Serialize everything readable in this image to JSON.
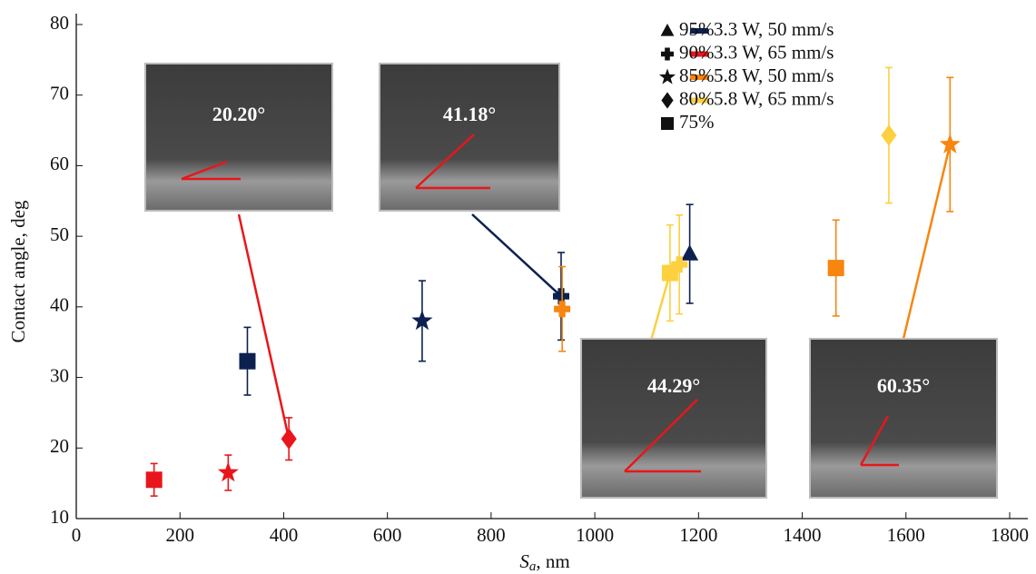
{
  "chart_data": {
    "type": "scatter",
    "xlabel": [
      "S",
      "a",
      ", nm"
    ],
    "ylabel": "Contact angle, deg",
    "xlim": [
      0,
      1800
    ],
    "xticks": [
      0,
      200,
      400,
      600,
      800,
      1000,
      1200,
      1400,
      1600,
      1800
    ],
    "ylim": [
      10,
      80
    ],
    "yticks": [
      10,
      20,
      30,
      40,
      50,
      60,
      70,
      80
    ],
    "marker_legend": [
      {
        "label": "95%",
        "marker": "triangle"
      },
      {
        "label": "90%",
        "marker": "plus"
      },
      {
        "label": "85%",
        "marker": "star"
      },
      {
        "label": "80%",
        "marker": "diamond"
      },
      {
        "label": "75%",
        "marker": "square"
      }
    ],
    "series": [
      {
        "name": "3.3 W, 50 mm/s",
        "color": "#0c2150",
        "x": [
          330,
          667,
          935,
          1183
        ],
        "values": [
          32.3,
          38,
          41.5,
          47.5
        ],
        "errors": [
          4.8,
          5.7,
          6.2,
          7
        ],
        "markers": [
          "square",
          "star",
          "plus",
          "triangle"
        ]
      },
      {
        "name": "3.3 W, 65 mm/s",
        "color": "#e8161b",
        "x": [
          150,
          293,
          410
        ],
        "values": [
          15.5,
          16.5,
          21.3
        ],
        "errors": [
          2.3,
          2.5,
          3
        ],
        "markers": [
          "square",
          "star",
          "diamond"
        ]
      },
      {
        "name": "5.8 W, 50 mm/s",
        "color": "#f7850f",
        "x": [
          937,
          1465,
          1685
        ],
        "values": [
          39.7,
          45.5,
          63
        ],
        "errors": [
          6,
          6.8,
          9.5
        ],
        "markers": [
          "plus",
          "square",
          "star"
        ]
      },
      {
        "name": "5.8 W, 65 mm/s",
        "color": "#fcd03f",
        "x": [
          1145,
          1163,
          1567
        ],
        "values": [
          44.8,
          46,
          64.3
        ],
        "errors": [
          6.8,
          7,
          9.6
        ],
        "markers": [
          "square",
          "plus",
          "diamond"
        ]
      }
    ],
    "annotations": [
      "20.20°",
      "41.18°",
      "44.29°",
      "60.35°"
    ]
  }
}
